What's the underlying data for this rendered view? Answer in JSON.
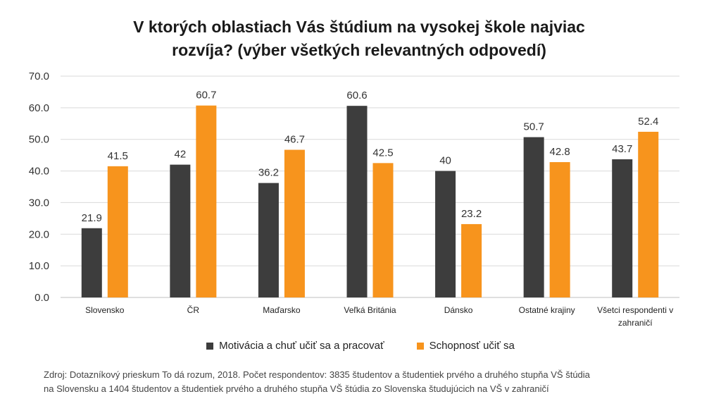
{
  "chart_data": {
    "type": "bar",
    "title_line1": "V ktorých oblastiach Vás štúdium na vysokej škole najviac",
    "title_line2": "rozvíja? (výber všetkých relevantných odpovedí)",
    "categories": [
      "Slovensko",
      "ČR",
      "Maďarsko",
      "Veľká Británia",
      "Dánsko",
      "Ostatné krajiny",
      "Všetci respondenti v zahraničí"
    ],
    "category_lines": [
      [
        "Slovensko"
      ],
      [
        "ČR"
      ],
      [
        "Maďarsko"
      ],
      [
        "Veľká Británia"
      ],
      [
        "Dánsko"
      ],
      [
        "Ostatné krajiny"
      ],
      [
        "Všetci respondenti v",
        "zahraničí"
      ]
    ],
    "series": [
      {
        "name": "Motivácia a chuť učiť sa a pracovať",
        "color": "#3d3d3d",
        "values": [
          21.9,
          42,
          36.2,
          60.6,
          40,
          50.7,
          43.7
        ]
      },
      {
        "name": "Schopnosť učiť sa",
        "color": "#f7941d",
        "values": [
          41.5,
          60.7,
          46.7,
          42.5,
          23.2,
          42.8,
          52.4
        ]
      }
    ],
    "value_labels": [
      [
        "21.9",
        "42",
        "36.2",
        "60.6",
        "40",
        "50.7",
        "43.7"
      ],
      [
        "41.5",
        "60.7",
        "46.7",
        "42.5",
        "23.2",
        "42.8",
        "52.4"
      ]
    ],
    "yticks": [
      "0.0",
      "10.0",
      "20.0",
      "30.0",
      "40.0",
      "50.0",
      "60.0",
      "70.0"
    ],
    "ylim": [
      0,
      70
    ],
    "grid": true,
    "gridline_color": "#d9d9d9",
    "legend_position": "bottom"
  },
  "source": {
    "line1": "Zdroj: Dotazníkový prieskum To dá rozum, 2018. Počet respondentov: 3835 študentov a študentiek prvého a druhého stupňa VŠ štúdia",
    "line2": "na Slovensku a 1404 študentov a študentiek prvého a druhého stupňa VŠ štúdia zo Slovenska študujúcich na VŠ v zahraničí"
  }
}
